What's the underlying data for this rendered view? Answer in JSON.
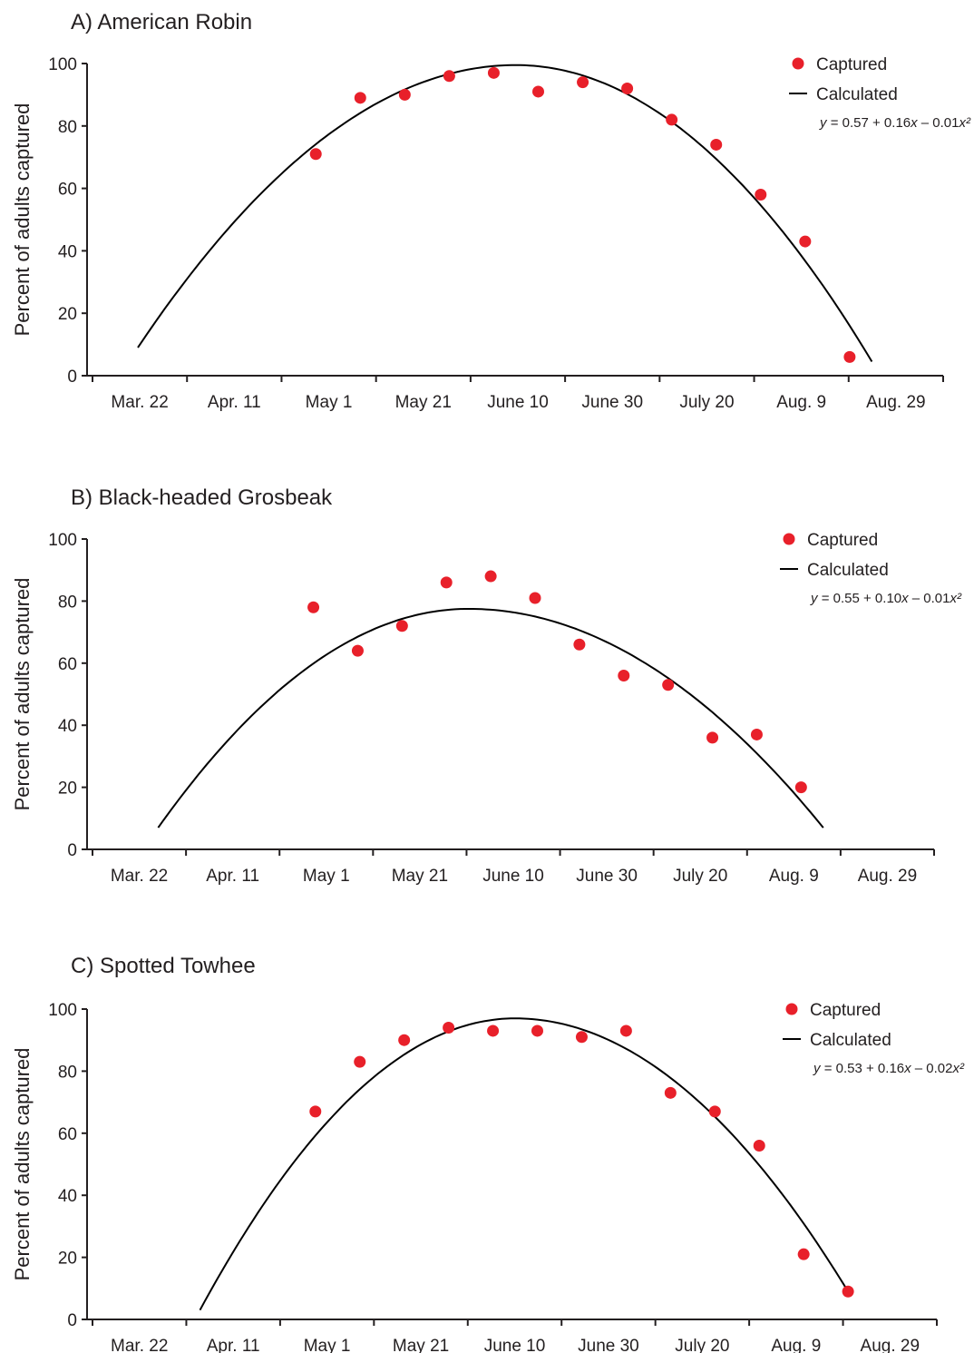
{
  "chart_data": [
    {
      "type": "scatter",
      "title": "A) American Robin",
      "ylabel": "Percent of adults captured",
      "xlabel": "",
      "categories": [
        "Mar. 22",
        "Apr. 11",
        "May 1",
        "May 21",
        "June 10",
        "June 30",
        "July 20",
        "Aug. 9",
        "Aug. 29"
      ],
      "yticks": [
        0,
        20,
        40,
        60,
        80,
        100
      ],
      "ylim": [
        0,
        100
      ],
      "series": [
        {
          "name": "Captured",
          "color": "#e8202a",
          "x": [
            "May 1",
            "May 11",
            "May 21",
            "May 31",
            "June 10",
            "June 20",
            "June 30",
            "July 10",
            "July 20",
            "July 30",
            "Aug. 9",
            "Aug. 19",
            "Aug. 29"
          ],
          "values": [
            71,
            89,
            90,
            96,
            97,
            91,
            94,
            92,
            82,
            74,
            58,
            43,
            6
          ]
        },
        {
          "name": "Calculated",
          "color": "#000000",
          "x_range": [
            "Mar. 22",
            "Sep. 3"
          ],
          "peak_date": "June 15",
          "peak_value": 99.5,
          "start_value": 9,
          "end_value": 4.5
        }
      ],
      "legend": {
        "position": "top-right",
        "captured": "Captured",
        "calculated": "Calculated"
      },
      "equation": {
        "y": "y",
        "mid": " = 0.57 + 0.16",
        "x": "x",
        "tail": " – 0.01",
        "x2": "x²"
      }
    },
    {
      "type": "scatter",
      "title": "B) Black-headed Grosbeak",
      "ylabel": "Percent of adults captured",
      "xlabel": "",
      "categories": [
        "Mar. 22",
        "Apr. 11",
        "May 1",
        "May 21",
        "June 10",
        "June 30",
        "July 20",
        "Aug. 9",
        "Aug. 29"
      ],
      "yticks": [
        0,
        20,
        40,
        60,
        80,
        100
      ],
      "ylim": [
        0,
        100
      ],
      "series": [
        {
          "name": "Captured",
          "color": "#e8202a",
          "x": [
            "May 1",
            "May 11",
            "May 21",
            "May 31",
            "June 10",
            "June 20",
            "June 30",
            "July 10",
            "July 20",
            "July 30",
            "Aug. 9",
            "Aug. 19"
          ],
          "values": [
            78,
            64,
            72,
            86,
            88,
            81,
            66,
            56,
            53,
            36,
            37,
            20
          ]
        },
        {
          "name": "Calculated",
          "color": "#000000",
          "x_range": [
            "Mar. 27",
            "Aug. 24"
          ],
          "peak_date": "June 5",
          "peak_value": 77.5,
          "start_value": 7,
          "end_value": 7
        }
      ],
      "legend": {
        "position": "top-right",
        "captured": "Captured",
        "calculated": "Calculated"
      },
      "equation": {
        "y": "y",
        "mid": " = 0.55 + 0.10",
        "x": "x",
        "tail": " – 0.01",
        "x2": "x²"
      }
    },
    {
      "type": "scatter",
      "title": "C) Spotted Towhee",
      "ylabel": "Percent of adults captured",
      "xlabel": "",
      "categories": [
        "Mar. 22",
        "Apr. 11",
        "May 1",
        "May 21",
        "June 10",
        "June 30",
        "July 20",
        "Aug. 9",
        "Aug. 29"
      ],
      "yticks": [
        0,
        20,
        40,
        60,
        80,
        100
      ],
      "ylim": [
        0,
        100
      ],
      "series": [
        {
          "name": "Captured",
          "color": "#e8202a",
          "x": [
            "May 1",
            "May 11",
            "May 21",
            "May 31",
            "June 10",
            "June 20",
            "June 30",
            "July 10",
            "July 20",
            "July 30",
            "Aug. 9",
            "Aug. 19",
            "Aug. 29"
          ],
          "values": [
            67,
            83,
            90,
            94,
            93,
            93,
            91,
            93,
            73,
            67,
            56,
            21,
            9
          ]
        },
        {
          "name": "Calculated",
          "color": "#000000",
          "x_range": [
            "Apr. 5",
            "Aug. 29"
          ],
          "peak_date": "June 15",
          "peak_value": 97,
          "start_value": 3,
          "end_value": 9
        }
      ],
      "legend": {
        "position": "top-right",
        "captured": "Captured",
        "calculated": "Calculated"
      },
      "equation": {
        "y": "y",
        "mid": " = 0.53 + 0.16",
        "x": "x",
        "tail": " – 0.02",
        "x2": "x²"
      }
    }
  ]
}
